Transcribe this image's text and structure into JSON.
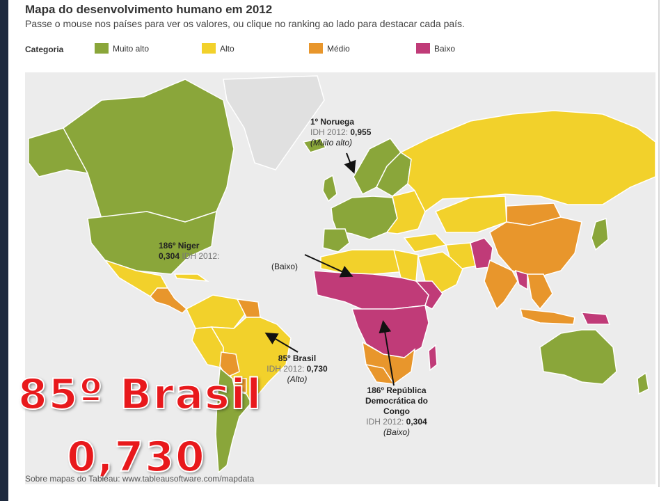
{
  "title": "Mapa do desenvolvimento humano em 2012",
  "subtitle": "Passe o mouse nos países para ver os valores, ou clique no ranking ao lado para destacar cada país.",
  "legend": {
    "title": "Categoria",
    "items": [
      {
        "label": "Muito alto",
        "color": "#8aa63a"
      },
      {
        "label": "Alto",
        "color": "#f2d12b"
      },
      {
        "label": "Médio",
        "color": "#e8962c"
      },
      {
        "label": "Baixo",
        "color": "#c03b78"
      }
    ]
  },
  "annotations": {
    "noruega": {
      "rank": "1º Noruega",
      "idh_label": "IDH 2012:",
      "idh_value": "0,955",
      "category": "(Muito alto)"
    },
    "niger": {
      "rank": "186º Niger",
      "idh_label": "IDH 2012:",
      "idh_value": "0,304",
      "category": "(Baixo)"
    },
    "brasil": {
      "rank": "85º Brasil",
      "idh_label": "IDH 2012:",
      "idh_value": "0,730",
      "category": "(Alto)"
    },
    "congo": {
      "rank_line1": "186º República",
      "rank_line2": "Democrática do",
      "rank_line3": "Congo",
      "idh_label": "IDH 2012:",
      "idh_value": "0,304",
      "category": "(Baixo)"
    }
  },
  "overlay": {
    "rank": "85º Brasil",
    "value": "0,730"
  },
  "source": "Sobre mapas do Tableau: www.tableausoftware.com/mapdata",
  "colors": {
    "no_data": "#e0e0e0",
    "background": "#ececec",
    "overlay_text": "#e8191c"
  }
}
